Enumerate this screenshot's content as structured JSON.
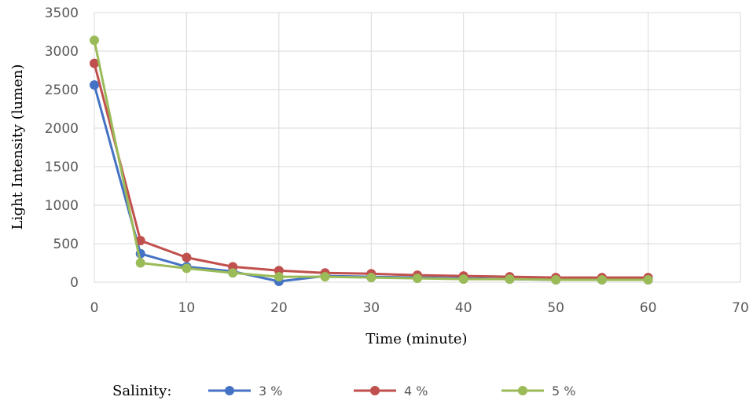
{
  "chart_data": {
    "type": "line",
    "xlabel": "Time (minute)",
    "ylabel": "Light Intensity (lumen)",
    "xlim": [
      0,
      70
    ],
    "ylim": [
      0,
      3500
    ],
    "x_ticks": [
      "0",
      "10",
      "20",
      "30",
      "40",
      "50",
      "60",
      "70"
    ],
    "y_ticks": [
      "0",
      "500",
      "1000",
      "1500",
      "2000",
      "2500",
      "3000",
      "3500"
    ],
    "grid": true,
    "legend_title": "Salinity:",
    "legend_position": "bottom",
    "x": [
      0,
      5,
      10,
      15,
      20,
      25,
      30,
      35,
      40,
      45,
      50,
      55,
      60
    ],
    "series": [
      {
        "name": "3 %",
        "color": "#4472c4",
        "values": [
          2560,
          370,
          200,
          140,
          10,
          80,
          70,
          60,
          50,
          40,
          30,
          30,
          30
        ]
      },
      {
        "name": "4 %",
        "color": "#c0504d",
        "values": [
          2840,
          540,
          320,
          200,
          150,
          120,
          110,
          90,
          80,
          70,
          60,
          60,
          60
        ]
      },
      {
        "name": "5 %",
        "color": "#9bbb59",
        "values": [
          3140,
          250,
          180,
          120,
          70,
          70,
          60,
          50,
          40,
          40,
          30,
          30,
          30
        ]
      }
    ]
  }
}
